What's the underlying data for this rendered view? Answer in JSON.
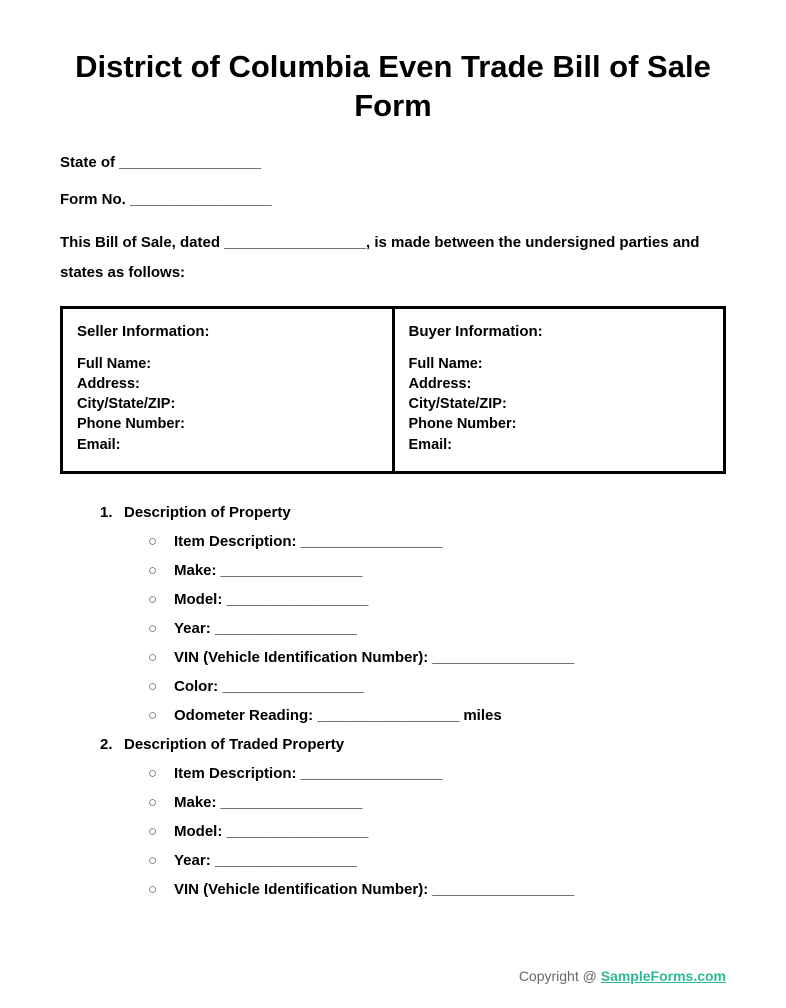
{
  "title": "District of Columbia Even Trade Bill of Sale Form",
  "header": {
    "state_line": "State of _________________",
    "form_no_line": "Form No. _________________"
  },
  "intro": "This Bill of Sale, dated _________________, is made between the undersigned parties and states as follows:",
  "parties": {
    "seller": {
      "heading": "Seller Information:",
      "fields": [
        "Full Name:",
        "Address:",
        "City/State/ZIP:",
        "Phone Number:",
        "Email:"
      ]
    },
    "buyer": {
      "heading": "Buyer Information:",
      "fields": [
        "Full Name:",
        "Address:",
        "City/State/ZIP:",
        "Phone Number:",
        "Email:"
      ]
    }
  },
  "sections": [
    {
      "num": "1.",
      "title": "Description of Property",
      "items": [
        "Item Description: _________________",
        "Make: _________________",
        "Model: _________________",
        "Year: _________________",
        "VIN (Vehicle Identification Number): _________________",
        "Color: _________________",
        "Odometer Reading: _________________ miles"
      ]
    },
    {
      "num": "2.",
      "title": "Description of Traded Property",
      "items": [
        "Item Description: _________________",
        "Make: _________________",
        "Model: _________________",
        "Year: _________________",
        "VIN (Vehicle Identification Number): _________________"
      ]
    }
  ],
  "footer": {
    "prefix": "Copyright @ ",
    "link_text": "SampleForms.com"
  },
  "style": {
    "background": "#ffffff",
    "text_color": "#000000",
    "link_color": "#2fb897",
    "footer_color": "#686868",
    "border_color": "#000000",
    "title_fontsize": 31,
    "body_fontsize": 15,
    "bullet_marker": "○"
  }
}
